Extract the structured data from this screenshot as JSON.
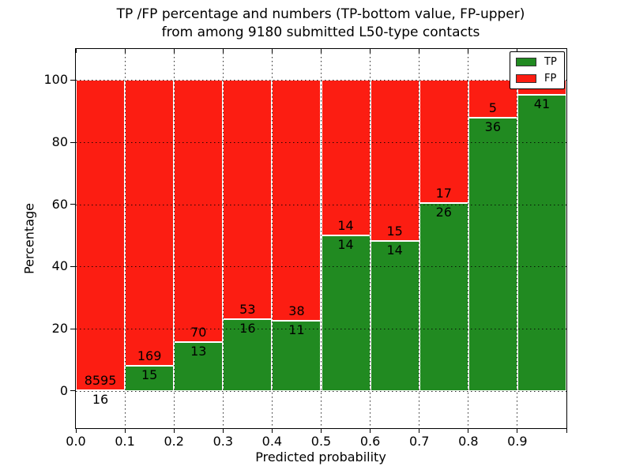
{
  "figure": {
    "title_line1": "TP /FP percentage and numbers (TP-bottom value, FP-upper)",
    "title_line2": "from among 9180 submitted L50-type contacts"
  },
  "axes": {
    "xlabel": "Predicted probability",
    "ylabel": "Percentage"
  },
  "legend": {
    "position": "upper right",
    "entries": [
      {
        "label": "TP",
        "color": "#218a21"
      },
      {
        "label": "FP",
        "color": "#fc1d12"
      }
    ]
  },
  "colors": {
    "tp_green": "#218a21",
    "fp_red": "#fc1d12",
    "background": "#ffffff",
    "grid": "#000000"
  },
  "chart_data": {
    "type": "bar",
    "stacked": true,
    "title": "TP /FP percentage and numbers (TP-bottom value, FP-upper) from among 9180 submitted L50-type contacts",
    "xlabel": "Predicted probability",
    "ylabel": "Percentage",
    "xlim": [
      0.0,
      1.0
    ],
    "ylim": [
      -12,
      110
    ],
    "bin_width": 0.1,
    "x_tick_labels": [
      "0.0",
      "0.1",
      "0.2",
      "0.3",
      "0.4",
      "0.5",
      "0.6",
      "0.7",
      "0.8",
      "0.9"
    ],
    "y_tick_values": [
      0,
      20,
      40,
      60,
      80,
      100
    ],
    "grid": "dotted",
    "legend_position": "upper right",
    "total_submitted_in_title": 9180,
    "bins": [
      {
        "x_start": 0.0,
        "x_end": 0.1,
        "tp": 16,
        "fp": 8595,
        "tp_pct": 0.19,
        "tp_label": "16",
        "fp_label": "8595"
      },
      {
        "x_start": 0.1,
        "x_end": 0.2,
        "tp": 15,
        "fp": 169,
        "tp_pct": 8.15,
        "tp_label": "15",
        "fp_label": "169"
      },
      {
        "x_start": 0.2,
        "x_end": 0.3,
        "tp": 13,
        "fp": 70,
        "tp_pct": 15.66,
        "tp_label": "13",
        "fp_label": "70"
      },
      {
        "x_start": 0.3,
        "x_end": 0.4,
        "tp": 16,
        "fp": 53,
        "tp_pct": 23.19,
        "tp_label": "16",
        "fp_label": "53"
      },
      {
        "x_start": 0.4,
        "x_end": 0.5,
        "tp": 11,
        "fp": 38,
        "tp_pct": 22.45,
        "tp_label": "11",
        "fp_label": "38"
      },
      {
        "x_start": 0.5,
        "x_end": 0.6,
        "tp": 14,
        "fp": 14,
        "tp_pct": 50.0,
        "tp_label": "14",
        "fp_label": "14"
      },
      {
        "x_start": 0.6,
        "x_end": 0.7,
        "tp": 14,
        "fp": 15,
        "tp_pct": 48.28,
        "tp_label": "14",
        "fp_label": "15"
      },
      {
        "x_start": 0.7,
        "x_end": 0.8,
        "tp": 26,
        "fp": 17,
        "tp_pct": 60.47,
        "tp_label": "26",
        "fp_label": "17"
      },
      {
        "x_start": 0.8,
        "x_end": 0.9,
        "tp": 36,
        "fp": 5,
        "tp_pct": 87.8,
        "tp_label": "36",
        "fp_label": "5"
      },
      {
        "x_start": 0.9,
        "x_end": 1.0,
        "tp": 41,
        "fp": null,
        "tp_pct": 95.35,
        "tp_label": "41",
        "fp_label": ""
      }
    ],
    "series": [
      {
        "name": "TP",
        "color": "#218a21",
        "values": [
          16,
          15,
          13,
          16,
          11,
          14,
          14,
          26,
          36,
          41
        ]
      },
      {
        "name": "FP",
        "color": "#fc1d12",
        "values": [
          8595,
          169,
          70,
          53,
          38,
          14,
          15,
          17,
          5,
          null
        ]
      }
    ]
  }
}
